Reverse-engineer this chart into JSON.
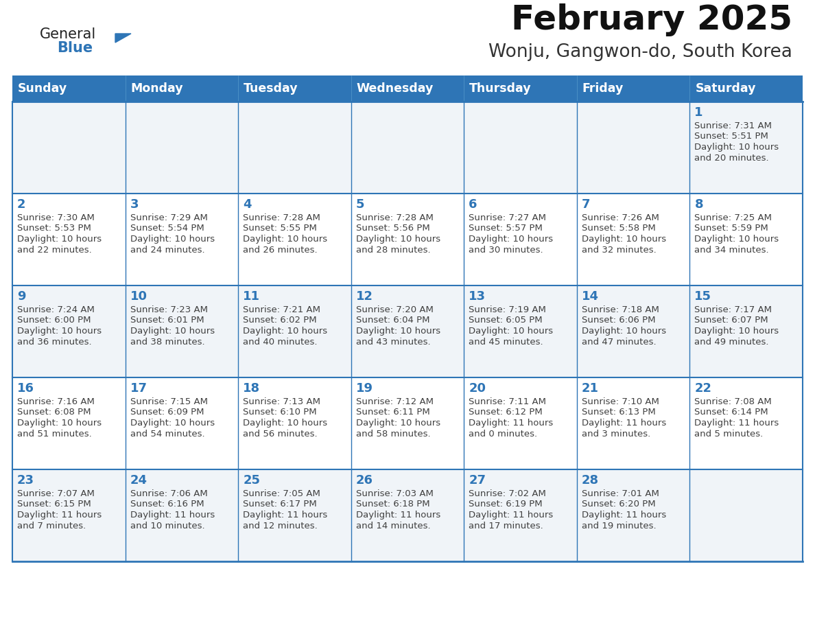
{
  "title": "February 2025",
  "subtitle": "Wonju, Gangwon-do, South Korea",
  "header_color": "#2E75B6",
  "header_text_color": "#FFFFFF",
  "cell_bg_even": "#FFFFFF",
  "cell_bg_odd": "#F0F4F8",
  "grid_color": "#2E75B6",
  "day_number_color": "#2E75B6",
  "info_text_color": "#404040",
  "days_of_week": [
    "Sunday",
    "Monday",
    "Tuesday",
    "Wednesday",
    "Thursday",
    "Friday",
    "Saturday"
  ],
  "logo_general_color": "#222222",
  "logo_blue_color": "#2E75B6",
  "calendar_data": [
    [
      null,
      null,
      null,
      null,
      null,
      null,
      {
        "day": "1",
        "sunrise": "7:31 AM",
        "sunset": "5:51 PM",
        "daylight_line1": "Daylight: 10 hours",
        "daylight_line2": "and 20 minutes."
      }
    ],
    [
      {
        "day": "2",
        "sunrise": "7:30 AM",
        "sunset": "5:53 PM",
        "daylight_line1": "Daylight: 10 hours",
        "daylight_line2": "and 22 minutes."
      },
      {
        "day": "3",
        "sunrise": "7:29 AM",
        "sunset": "5:54 PM",
        "daylight_line1": "Daylight: 10 hours",
        "daylight_line2": "and 24 minutes."
      },
      {
        "day": "4",
        "sunrise": "7:28 AM",
        "sunset": "5:55 PM",
        "daylight_line1": "Daylight: 10 hours",
        "daylight_line2": "and 26 minutes."
      },
      {
        "day": "5",
        "sunrise": "7:28 AM",
        "sunset": "5:56 PM",
        "daylight_line1": "Daylight: 10 hours",
        "daylight_line2": "and 28 minutes."
      },
      {
        "day": "6",
        "sunrise": "7:27 AM",
        "sunset": "5:57 PM",
        "daylight_line1": "Daylight: 10 hours",
        "daylight_line2": "and 30 minutes."
      },
      {
        "day": "7",
        "sunrise": "7:26 AM",
        "sunset": "5:58 PM",
        "daylight_line1": "Daylight: 10 hours",
        "daylight_line2": "and 32 minutes."
      },
      {
        "day": "8",
        "sunrise": "7:25 AM",
        "sunset": "5:59 PM",
        "daylight_line1": "Daylight: 10 hours",
        "daylight_line2": "and 34 minutes."
      }
    ],
    [
      {
        "day": "9",
        "sunrise": "7:24 AM",
        "sunset": "6:00 PM",
        "daylight_line1": "Daylight: 10 hours",
        "daylight_line2": "and 36 minutes."
      },
      {
        "day": "10",
        "sunrise": "7:23 AM",
        "sunset": "6:01 PM",
        "daylight_line1": "Daylight: 10 hours",
        "daylight_line2": "and 38 minutes."
      },
      {
        "day": "11",
        "sunrise": "7:21 AM",
        "sunset": "6:02 PM",
        "daylight_line1": "Daylight: 10 hours",
        "daylight_line2": "and 40 minutes."
      },
      {
        "day": "12",
        "sunrise": "7:20 AM",
        "sunset": "6:04 PM",
        "daylight_line1": "Daylight: 10 hours",
        "daylight_line2": "and 43 minutes."
      },
      {
        "day": "13",
        "sunrise": "7:19 AM",
        "sunset": "6:05 PM",
        "daylight_line1": "Daylight: 10 hours",
        "daylight_line2": "and 45 minutes."
      },
      {
        "day": "14",
        "sunrise": "7:18 AM",
        "sunset": "6:06 PM",
        "daylight_line1": "Daylight: 10 hours",
        "daylight_line2": "and 47 minutes."
      },
      {
        "day": "15",
        "sunrise": "7:17 AM",
        "sunset": "6:07 PM",
        "daylight_line1": "Daylight: 10 hours",
        "daylight_line2": "and 49 minutes."
      }
    ],
    [
      {
        "day": "16",
        "sunrise": "7:16 AM",
        "sunset": "6:08 PM",
        "daylight_line1": "Daylight: 10 hours",
        "daylight_line2": "and 51 minutes."
      },
      {
        "day": "17",
        "sunrise": "7:15 AM",
        "sunset": "6:09 PM",
        "daylight_line1": "Daylight: 10 hours",
        "daylight_line2": "and 54 minutes."
      },
      {
        "day": "18",
        "sunrise": "7:13 AM",
        "sunset": "6:10 PM",
        "daylight_line1": "Daylight: 10 hours",
        "daylight_line2": "and 56 minutes."
      },
      {
        "day": "19",
        "sunrise": "7:12 AM",
        "sunset": "6:11 PM",
        "daylight_line1": "Daylight: 10 hours",
        "daylight_line2": "and 58 minutes."
      },
      {
        "day": "20",
        "sunrise": "7:11 AM",
        "sunset": "6:12 PM",
        "daylight_line1": "Daylight: 11 hours",
        "daylight_line2": "and 0 minutes."
      },
      {
        "day": "21",
        "sunrise": "7:10 AM",
        "sunset": "6:13 PM",
        "daylight_line1": "Daylight: 11 hours",
        "daylight_line2": "and 3 minutes."
      },
      {
        "day": "22",
        "sunrise": "7:08 AM",
        "sunset": "6:14 PM",
        "daylight_line1": "Daylight: 11 hours",
        "daylight_line2": "and 5 minutes."
      }
    ],
    [
      {
        "day": "23",
        "sunrise": "7:07 AM",
        "sunset": "6:15 PM",
        "daylight_line1": "Daylight: 11 hours",
        "daylight_line2": "and 7 minutes."
      },
      {
        "day": "24",
        "sunrise": "7:06 AM",
        "sunset": "6:16 PM",
        "daylight_line1": "Daylight: 11 hours",
        "daylight_line2": "and 10 minutes."
      },
      {
        "day": "25",
        "sunrise": "7:05 AM",
        "sunset": "6:17 PM",
        "daylight_line1": "Daylight: 11 hours",
        "daylight_line2": "and 12 minutes."
      },
      {
        "day": "26",
        "sunrise": "7:03 AM",
        "sunset": "6:18 PM",
        "daylight_line1": "Daylight: 11 hours",
        "daylight_line2": "and 14 minutes."
      },
      {
        "day": "27",
        "sunrise": "7:02 AM",
        "sunset": "6:19 PM",
        "daylight_line1": "Daylight: 11 hours",
        "daylight_line2": "and 17 minutes."
      },
      {
        "day": "28",
        "sunrise": "7:01 AM",
        "sunset": "6:20 PM",
        "daylight_line1": "Daylight: 11 hours",
        "daylight_line2": "and 19 minutes."
      },
      null
    ]
  ]
}
